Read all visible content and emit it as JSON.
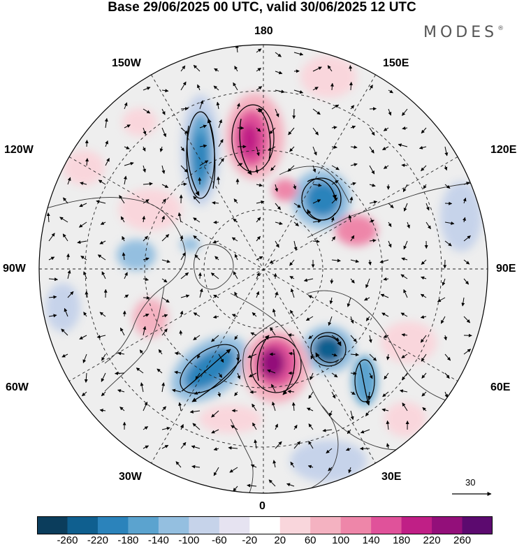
{
  "title": "Base 29/06/2025 00 UTC, valid 30/06/2025 12 UTC",
  "brand": "MODES",
  "brand_mark": "®",
  "meridians": {
    "m180": "180",
    "m150w": "150W",
    "m150e": "150E",
    "m120w": "120W",
    "m120e": "120E",
    "m90w": "90W",
    "m90e": "90E",
    "m60w": "60W",
    "m60e": "60E",
    "m30w": "30W",
    "m30e": "30E",
    "m0": "0"
  },
  "vector_scale_label": "30",
  "colorbar": {
    "colors": [
      "#0b3d5c",
      "#0f5f8f",
      "#2b83bb",
      "#5ba3cf",
      "#94bfe0",
      "#c6d3ea",
      "#e6e3f1",
      "#ffffff",
      "#f9d6dc",
      "#f4b2c1",
      "#ee86a9",
      "#e0529a",
      "#c01f86",
      "#930f7a",
      "#5c0a6f"
    ],
    "ticks": [
      "-260",
      "-220",
      "-180",
      "-140",
      "-100",
      "-60",
      "-20",
      "20",
      "60",
      "100",
      "140",
      "180",
      "220",
      "260"
    ]
  },
  "colors": {
    "background_field": "#eeeeee",
    "coast": "#333333",
    "grid": "#222222"
  }
}
